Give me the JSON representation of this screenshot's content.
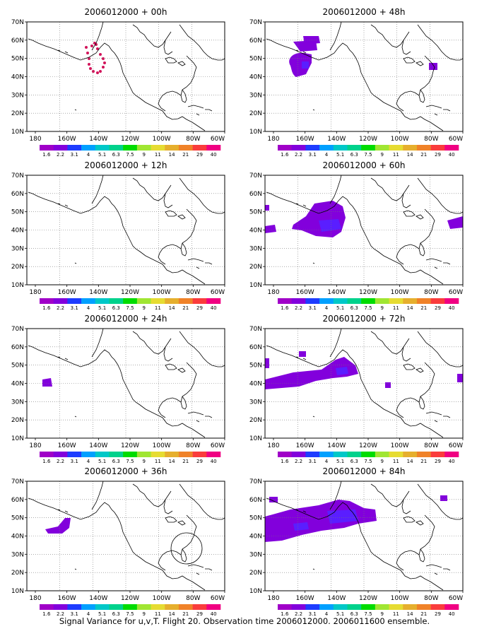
{
  "caption": "Signal Variance for u,v,T. Flight 20. Observation time 2006012000. 2006011600 ensemble.",
  "x_tick_labels": [
    "180",
    "160W",
    "140W",
    "120W",
    "100W",
    "80W",
    "60W"
  ],
  "y_tick_labels": [
    "70N",
    "60N",
    "50N",
    "40N",
    "30N",
    "20N",
    "10N"
  ],
  "colorbar": {
    "labels": [
      "1.6",
      "2.2",
      "3.1",
      "4",
      "5.1",
      "6.3",
      "7.5",
      "9",
      "11",
      "14",
      "21",
      "29",
      "40"
    ],
    "colors": [
      "#a000c8",
      "#8200dc",
      "#1e3cff",
      "#00a0ff",
      "#00c8c8",
      "#00d28c",
      "#00dc00",
      "#a0e632",
      "#e6dc32",
      "#e6af2d",
      "#f08228",
      "#fa3c3c",
      "#f00082"
    ]
  },
  "panels": [
    {
      "title": "2006012000 + 00h"
    },
    {
      "title": "2006012000 + 48h"
    },
    {
      "title": "2006012000 + 12h"
    },
    {
      "title": "2006012000 + 60h"
    },
    {
      "title": "2006012000 + 24h"
    },
    {
      "title": "2006012000 + 72h"
    },
    {
      "title": "2006012000 + 36h"
    },
    {
      "title": "2006012000 + 84h"
    }
  ]
}
